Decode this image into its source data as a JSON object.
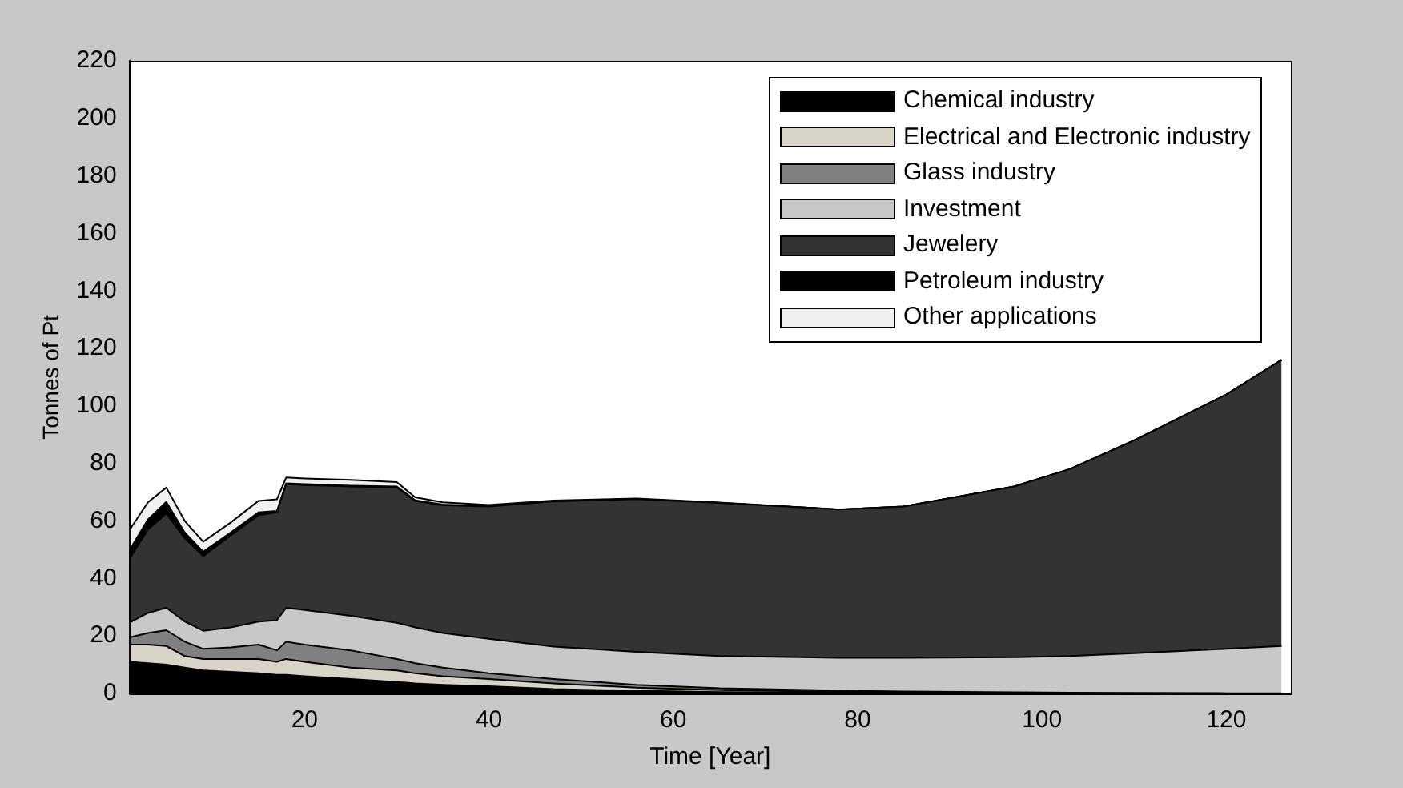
{
  "chart_data": {
    "type": "area",
    "stacked": true,
    "xlabel": "Time [Year]",
    "ylabel": "Tonnes of Pt",
    "xlim": [
      1,
      127
    ],
    "xticks": [
      20,
      40,
      60,
      80,
      100,
      120
    ],
    "ylim": [
      0,
      220
    ],
    "yticks": [
      0,
      20,
      40,
      60,
      80,
      100,
      120,
      140,
      160,
      180,
      200,
      220
    ],
    "grid": false,
    "legend": "top right",
    "x": [
      1,
      3,
      5,
      7,
      9,
      12,
      15,
      17,
      18,
      20,
      25,
      30,
      32,
      35,
      40,
      47,
      56,
      65,
      78,
      85,
      97,
      103,
      110,
      120,
      126
    ],
    "series": [
      {
        "name": "Chemical industry",
        "color": "#000000",
        "values": [
          11,
          10.5,
          10,
          9,
          8,
          7.5,
          7,
          6.5,
          6.5,
          6,
          5,
          4,
          3.5,
          3,
          2.5,
          1.5,
          1,
          0.5,
          0.3,
          0.2,
          0,
          0,
          0,
          0,
          0
        ]
      },
      {
        "name": "Electrical and Electronic industry",
        "color": "#d8d4c8",
        "values": [
          6,
          6.5,
          6.5,
          4,
          4,
          4.5,
          5,
          4.5,
          5.5,
          5,
          4,
          4,
          3.5,
          3,
          2.5,
          2,
          1,
          0.7,
          0.3,
          0.2,
          0.2,
          0,
          0,
          0,
          0
        ]
      },
      {
        "name": "Glass industry",
        "color": "#808080",
        "values": [
          2.5,
          4,
          5.5,
          5,
          3.5,
          4,
          5,
          4,
          6,
          6,
          6,
          4,
          3.5,
          3,
          2,
          1.5,
          1,
          0.6,
          0.4,
          0.3,
          0.2,
          0.3,
          0.2,
          0.1,
          0.1
        ]
      },
      {
        "name": "Investment",
        "color": "#c8c8c8",
        "values": [
          5.1,
          7,
          7.8,
          7,
          6.3,
          7,
          8,
          10.5,
          11.8,
          12,
          12,
          12.6,
          12.5,
          12,
          12,
          11.3,
          11.5,
          11.2,
          11.4,
          11.7,
          12.2,
          12.7,
          13.8,
          15.4,
          16.4
        ]
      },
      {
        "name": "Jewelery",
        "color": "#333333",
        "values": [
          22.2,
          29,
          32.8,
          29,
          26,
          32,
          37,
          37.5,
          43,
          43.5,
          45,
          47.1,
          44,
          44.5,
          46,
          50.5,
          53.1,
          53.3,
          51.6,
          52.6,
          59.4,
          65,
          74,
          88.5,
          99.5
        ]
      },
      {
        "name": "Petroleum industry",
        "color": "#000000",
        "values": [
          3,
          3.5,
          4,
          2,
          1.5,
          1,
          1,
          0.5,
          0.3,
          0.3,
          0.3,
          0.3,
          0.2,
          0.2,
          0.1,
          0,
          0,
          0,
          0,
          0,
          0,
          0,
          0,
          0,
          0
        ]
      },
      {
        "name": "Other applications",
        "color": "#f0f0f0",
        "values": [
          7,
          6,
          5,
          4,
          3.5,
          3.5,
          4,
          4,
          2,
          2,
          2,
          1.5,
          1,
          0.8,
          0.5,
          0.3,
          0.2,
          0.1,
          0,
          0,
          0,
          0,
          0,
          0,
          0
        ]
      }
    ]
  }
}
